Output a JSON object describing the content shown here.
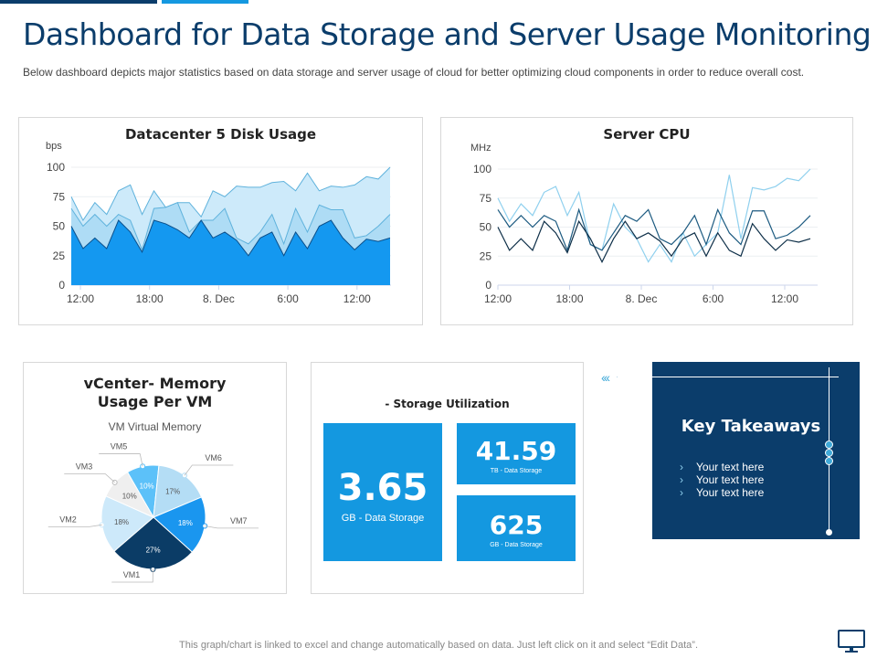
{
  "header": {
    "title": "Dashboard for Data Storage and Server Usage Monitoring",
    "description": "Below dashboard depicts major statistics based on data storage and server  usage of cloud for better optimizing cloud components in order to reduce overall  cost."
  },
  "chart_data": [
    {
      "type": "area",
      "stacked": true,
      "title": "Datacenter 5 Disk Usage",
      "ylabel": "bps",
      "ylim": [
        0,
        100
      ],
      "yticks": [
        0,
        25,
        50,
        75,
        100
      ],
      "xticks": [
        "12:00",
        "18:00",
        "8. Dec",
        "6:00",
        "12:00"
      ],
      "x": [
        "11:15",
        "12:15",
        "13:15",
        "14:15",
        "15:15",
        "16:15",
        "17:15",
        "18:15",
        "19:15",
        "20:15",
        "21:15",
        "22:15",
        "23:15",
        "00:15",
        "01:15",
        "02:15",
        "03:15",
        "04:15",
        "05:15",
        "06:15",
        "07:15",
        "08:15",
        "09:15",
        "10:15",
        "11:15",
        "12:15",
        "13:15",
        "14:15"
      ],
      "colors": [
        "#1498f0",
        "#aedcf5",
        "#cdeafa"
      ],
      "series": [
        {
          "values": [
            50,
            31,
            40,
            31,
            55,
            45,
            28,
            55,
            52,
            47,
            40,
            55,
            40,
            45,
            38,
            25,
            40,
            45,
            25,
            45,
            31,
            50,
            55,
            40,
            30,
            39,
            37,
            40
          ]
        },
        {
          "values": [
            15,
            19,
            20,
            19,
            5,
            10,
            2,
            10,
            14,
            23,
            5,
            0,
            15,
            20,
            2,
            10,
            5,
            15,
            10,
            20,
            14,
            18,
            9,
            24,
            10,
            3,
            13,
            20
          ]
        },
        {
          "values": [
            10,
            5,
            10,
            10,
            20,
            30,
            30,
            15,
            0,
            0,
            25,
            3,
            25,
            10,
            44,
            48,
            38,
            27,
            53,
            15,
            50,
            12,
            20,
            19,
            45,
            50,
            40,
            40
          ]
        }
      ]
    },
    {
      "type": "line",
      "title": "Server CPU",
      "ylabel": "MHz",
      "ylim": [
        0,
        100
      ],
      "yticks": [
        0,
        25,
        50,
        75,
        100
      ],
      "xticks": [
        "12:00",
        "18:00",
        "8. Dec",
        "6:00",
        "12:00"
      ],
      "x": [
        "12:00",
        "13:00",
        "14:00",
        "15:00",
        "16:00",
        "17:00",
        "18:00",
        "19:00",
        "20:00",
        "21:00",
        "22:00",
        "23:00",
        "00:00",
        "01:00",
        "02:00",
        "03:00",
        "04:00",
        "05:00",
        "06:00",
        "07:00",
        "08:00",
        "09:00",
        "10:00",
        "11:00",
        "12:00",
        "13:00",
        "14:00",
        "15:00"
      ],
      "series": [
        {
          "color": "#8fd0ee",
          "values": [
            75,
            55,
            70,
            60,
            80,
            85,
            60,
            80,
            35,
            30,
            70,
            50,
            40,
            20,
            35,
            20,
            45,
            25,
            35,
            45,
            95,
            40,
            84,
            82,
            85,
            92,
            90,
            100
          ]
        },
        {
          "color": "#1c5a80",
          "values": [
            65,
            50,
            60,
            50,
            60,
            55,
            30,
            65,
            35,
            30,
            45,
            60,
            55,
            65,
            40,
            35,
            45,
            60,
            35,
            65,
            45,
            35,
            64,
            64,
            40,
            43,
            50,
            60
          ]
        },
        {
          "color": "#0e2f48",
          "values": [
            50,
            30,
            40,
            30,
            55,
            45,
            28,
            55,
            40,
            20,
            40,
            55,
            40,
            45,
            38,
            25,
            40,
            45,
            25,
            45,
            30,
            25,
            53,
            40,
            30,
            39,
            37,
            40
          ]
        }
      ]
    },
    {
      "type": "pie",
      "title": "vCenter- Memory Usage Per VM",
      "subtitle": "VM Virtual Memory",
      "slices": [
        {
          "label": "VM5",
          "value": 10,
          "pct": "10%",
          "color": "#5cc1f9"
        },
        {
          "label": "VM6",
          "value": 17,
          "pct": "17%",
          "color": "#b4ddf5"
        },
        {
          "label": "VM7",
          "value": 18,
          "pct": "18%",
          "color": "#1a96ef"
        },
        {
          "label": "VM1",
          "value": 27,
          "pct": "27%",
          "color": "#0b3c66"
        },
        {
          "label": "VM2",
          "value": 18,
          "pct": "18%",
          "color": "#cde9fa"
        },
        {
          "label": "VM3",
          "value": 10,
          "pct": "10%",
          "color": "#efefef"
        }
      ]
    }
  ],
  "storage": {
    "title": "- Storage Utilization",
    "tiles": [
      {
        "value": "3.65",
        "label": "GB - Data Storage"
      },
      {
        "value": "41.59",
        "label": "TB - Data Storage"
      },
      {
        "value": "625",
        "label": "GB - Data Storage"
      }
    ]
  },
  "takeaways": {
    "title": "Key Takeaways",
    "items": [
      "Your text here",
      "Your text here",
      "Your text here"
    ],
    "chevrons": "‹‹‹",
    "bullet": "›"
  },
  "footer": {
    "note": "This graph/chart is linked to excel and change automatically based on data. Just left click on it and select “Edit Data”."
  },
  "icons": {
    "monitor": "monitor-icon"
  }
}
